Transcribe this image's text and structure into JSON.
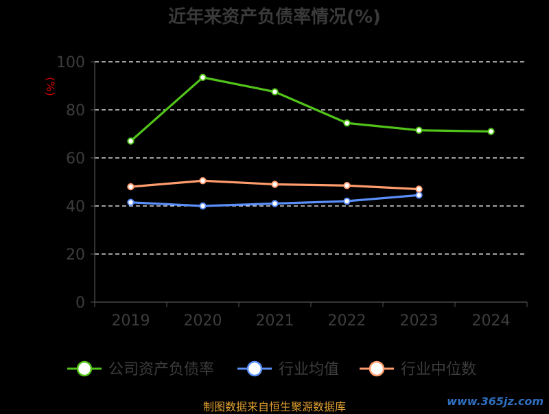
{
  "page": {
    "title": "近年来资产负债率情况(%)",
    "source": "制图数据来自恒生聚源数据库",
    "watermark": "www.365jz.com"
  },
  "chart_data": {
    "type": "line",
    "title": "近年来资产负债率情况(%)",
    "ylabel": "(%)",
    "xlabel": "",
    "categories": [
      "2019",
      "2020",
      "2021",
      "2022",
      "2023",
      "2024"
    ],
    "ylim": [
      0,
      100
    ],
    "yticks": [
      0,
      20,
      40,
      60,
      80,
      100
    ],
    "grid": true,
    "legend_position": "bottom",
    "series": [
      {
        "name": "公司资产负债率",
        "color": "#52c41a",
        "values": [
          67.0,
          93.5,
          87.5,
          74.5,
          71.5,
          71.0
        ]
      },
      {
        "name": "行业均值",
        "color": "#5b8ff9",
        "values": [
          41.5,
          40.0,
          41.0,
          42.0,
          44.5,
          null
        ]
      },
      {
        "name": "行业中位数",
        "color": "#ff9d6e",
        "values": [
          48.0,
          50.5,
          49.0,
          48.5,
          47.0,
          null
        ]
      }
    ]
  }
}
